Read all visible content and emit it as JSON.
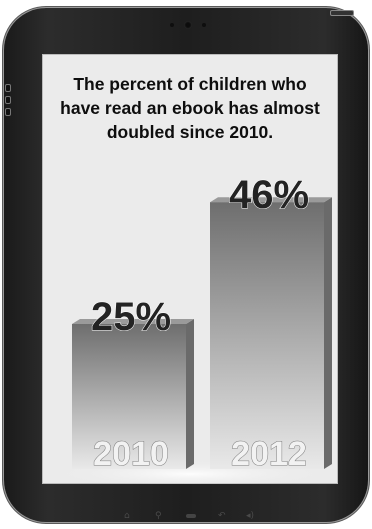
{
  "headline": "The percent of children who have read an ebook has almost doubled since 2010.",
  "chart_data": {
    "type": "bar",
    "title": "The percent of children who have read an ebook has almost doubled since 2010.",
    "categories": [
      "2010",
      "2012"
    ],
    "values": [
      25,
      46
    ],
    "value_labels": [
      "25%",
      "46%"
    ],
    "xlabel": "",
    "ylabel": "",
    "ylim": [
      0,
      50
    ],
    "grid": false,
    "legend": "none",
    "colors": {
      "bar_top": "#6e6e6e",
      "bar_bottom": "#e9e9e9",
      "bar_side": "#6a6a6a",
      "bar_cap": "#9a9a9a",
      "label": "#232323",
      "category_text": "#f2f2f2"
    }
  },
  "device": {
    "nav_icons": [
      "home-icon",
      "search-icon",
      "back-icon",
      "volume-icon"
    ]
  }
}
